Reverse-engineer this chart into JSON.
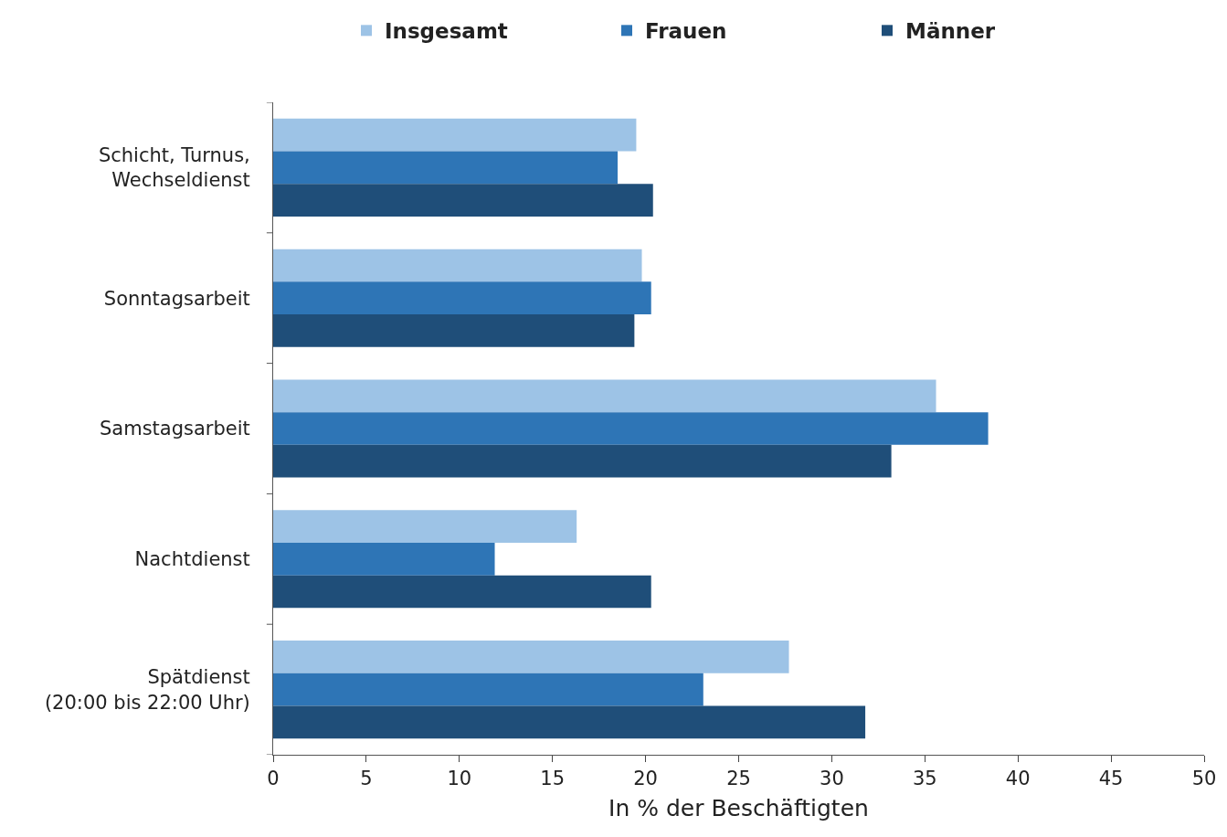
{
  "chart_data": {
    "type": "bar",
    "orientation": "horizontal",
    "xlabel": "In % der Beschäftigten",
    "categories": [
      "Schicht, Turnus,\nWechseldienst",
      "Sonntagsarbeit",
      "Samstagsarbeit",
      "Nachtdienst",
      "Spätdienst\n(20:00 bis 22:00 Uhr)"
    ],
    "series": [
      {
        "name": "Insgesamt",
        "color": "#9dc3e6",
        "values": [
          19.5,
          19.8,
          35.6,
          16.3,
          27.7
        ]
      },
      {
        "name": "Frauen",
        "color": "#2e75b6",
        "values": [
          18.5,
          20.3,
          38.4,
          11.9,
          23.1
        ]
      },
      {
        "name": "Männer",
        "color": "#1f4e79",
        "values": [
          20.4,
          19.4,
          33.2,
          20.3,
          31.8
        ]
      }
    ],
    "xlim": [
      0,
      50
    ],
    "xticks": [
      0,
      5,
      10,
      15,
      20,
      25,
      30,
      35,
      40,
      45,
      50
    ],
    "grid": false,
    "legend": "top"
  }
}
